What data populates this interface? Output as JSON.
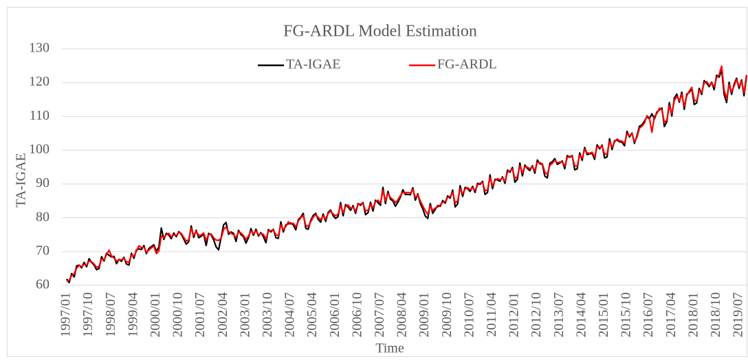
{
  "chart_data": {
    "type": "line",
    "title": "FG-ARDL Model Estimation",
    "x_label": "Time",
    "y_label": "TA-IGAE",
    "ylim": [
      60,
      130
    ],
    "yticks": [
      60,
      70,
      80,
      90,
      100,
      110,
      120,
      130
    ],
    "grid": true,
    "legend": "top",
    "categories": [
      "1997/01",
      null,
      null,
      null,
      null,
      null,
      null,
      null,
      null,
      "1997/10",
      null,
      null,
      null,
      null,
      null,
      null,
      null,
      null,
      "1998/07",
      null,
      null,
      null,
      null,
      null,
      null,
      null,
      null,
      "1999/04",
      null,
      null,
      null,
      null,
      null,
      null,
      null,
      null,
      "2000/01",
      null,
      null,
      null,
      null,
      null,
      null,
      null,
      null,
      "2000/10",
      null,
      null,
      null,
      null,
      null,
      null,
      null,
      null,
      "2001/07",
      null,
      null,
      null,
      null,
      null,
      null,
      null,
      null,
      "2002/04",
      null,
      null,
      null,
      null,
      null,
      null,
      null,
      null,
      "2003/01",
      null,
      null,
      null,
      null,
      null,
      null,
      null,
      null,
      "2003/10",
      null,
      null,
      null,
      null,
      null,
      null,
      null,
      null,
      "2004/07",
      null,
      null,
      null,
      null,
      null,
      null,
      null,
      null,
      "2005/04",
      null,
      null,
      null,
      null,
      null,
      null,
      null,
      null,
      "2006/01",
      null,
      null,
      null,
      null,
      null,
      null,
      null,
      null,
      "2006/10",
      null,
      null,
      null,
      null,
      null,
      null,
      null,
      null,
      "2007/07",
      null,
      null,
      null,
      null,
      null,
      null,
      null,
      null,
      "2008/04",
      null,
      null,
      null,
      null,
      null,
      null,
      null,
      null,
      "2009/01",
      null,
      null,
      null,
      null,
      null,
      null,
      null,
      null,
      "2009/10",
      null,
      null,
      null,
      null,
      null,
      null,
      null,
      null,
      "2010/07",
      null,
      null,
      null,
      null,
      null,
      null,
      null,
      null,
      "2011/04",
      null,
      null,
      null,
      null,
      null,
      null,
      null,
      null,
      "2012/01",
      null,
      null,
      null,
      null,
      null,
      null,
      null,
      null,
      "2012/10",
      null,
      null,
      null,
      null,
      null,
      null,
      null,
      null,
      "2013/07",
      null,
      null,
      null,
      null,
      null,
      null,
      null,
      null,
      "2014/04",
      null,
      null,
      null,
      null,
      null,
      null,
      null,
      null,
      "2015/01",
      null,
      null,
      null,
      null,
      null,
      null,
      null,
      null,
      "2015/10",
      null,
      null,
      null,
      null,
      null,
      null,
      null,
      null,
      "2016/07",
      null,
      null,
      null,
      null,
      null,
      null,
      null,
      null,
      "2017/04",
      null,
      null,
      null,
      null,
      null,
      null,
      null,
      null,
      "2018/01",
      null,
      null,
      null,
      null,
      null,
      null,
      null,
      null,
      "2018/10",
      null,
      null,
      null,
      null,
      null,
      null,
      null,
      null,
      "2019/07",
      null,
      null,
      null
    ],
    "series": [
      {
        "name": "TA-IGAE",
        "color": "#000000",
        "values": [
          61.9,
          60.8,
          63.5,
          62.5,
          65.8,
          66.0,
          65.2,
          66.8,
          65.5,
          67.9,
          66.8,
          66.0,
          64.6,
          65.0,
          68.5,
          67.2,
          69.5,
          68.9,
          68.4,
          68.6,
          66.4,
          67.7,
          67.1,
          68.3,
          66.3,
          66.0,
          69.5,
          68.0,
          70.5,
          70.8,
          70.6,
          71.8,
          69.4,
          70.9,
          71.5,
          72.0,
          70.1,
          71.3,
          77.0,
          73.6,
          75.4,
          74.9,
          73.8,
          75.5,
          74.4,
          75.9,
          75.1,
          73.7,
          72.2,
          72.9,
          77.6,
          74.2,
          76.3,
          74.1,
          74.5,
          75.2,
          71.8,
          75.4,
          74.9,
          73.5,
          71.4,
          70.5,
          74.1,
          77.9,
          78.6,
          75.1,
          75.8,
          75.4,
          73.0,
          76.3,
          75.0,
          74.4,
          72.5,
          74.1,
          76.8,
          74.8,
          76.6,
          74.6,
          75.6,
          74.4,
          72.6,
          76.5,
          75.8,
          76.6,
          74.1,
          73.9,
          78.8,
          75.8,
          77.9,
          78.2,
          78.5,
          77.9,
          76.4,
          79.4,
          80.2,
          81.3,
          76.9,
          76.6,
          79.2,
          80.7,
          81.3,
          79.5,
          78.7,
          81.1,
          78.9,
          81.6,
          82.3,
          80.6,
          79.8,
          80.4,
          84.5,
          80.6,
          83.9,
          83.2,
          82.2,
          83.6,
          81.3,
          84.2,
          83.7,
          84.5,
          80.9,
          81.5,
          84.6,
          82.0,
          85.2,
          84.5,
          83.7,
          89.0,
          84.2,
          87.8,
          85.5,
          85.0,
          83.4,
          84.6,
          86.1,
          88.3,
          86.9,
          86.9,
          86.8,
          88.9,
          85.2,
          87.1,
          84.2,
          82.6,
          80.5,
          79.8,
          84.2,
          81.3,
          82.5,
          83.6,
          83.4,
          85.1,
          84.3,
          86.5,
          85.8,
          88.2,
          83.2,
          84.1,
          89.5,
          86.3,
          89.0,
          88.6,
          87.8,
          89.3,
          87.5,
          90.2,
          89.9,
          90.8,
          86.9,
          87.5,
          92.7,
          88.6,
          91.4,
          91.2,
          90.8,
          92.1,
          90.2,
          94.1,
          93.5,
          94.9,
          90.5,
          91.4,
          96.2,
          92.4,
          95.6,
          94.6,
          94.0,
          95.4,
          93.2,
          97.1,
          96.0,
          95.8,
          92.3,
          91.8,
          96.1,
          96.6,
          97.5,
          95.8,
          96.2,
          96.8,
          94.5,
          98.4,
          97.9,
          98.4,
          94.2,
          94.5,
          99.2,
          97.0,
          100.8,
          98.7,
          98.9,
          99.1,
          97.3,
          101.6,
          100.4,
          101.5,
          97.7,
          98.0,
          103.4,
          100.2,
          102.8,
          103.0,
          102.5,
          102.4,
          101.3,
          105.6,
          103.9,
          105.1,
          102.0,
          104.3,
          107.1,
          107.5,
          108.6,
          109.9,
          109.3,
          110.8,
          109.2,
          111.3,
          111.9,
          112.5,
          107.0,
          108.4,
          114.1,
          110.1,
          115.4,
          116.6,
          114.2,
          117.2,
          112.1,
          116.6,
          117.1,
          118.2,
          113.5,
          114.0,
          118.3,
          116.5,
          120.6,
          119.8,
          118.8,
          120.1,
          117.9,
          122.2,
          121.6,
          123.8,
          116.5,
          114.1,
          120.1,
          116.5,
          119.5,
          121.3,
          118.3,
          120.8,
          116.1,
          122.0
        ]
      },
      {
        "name": "FG-ARDL",
        "color": "#ff0000",
        "values": [
          61.2,
          61.5,
          62.9,
          63.4,
          65.1,
          65.9,
          65.6,
          66.2,
          66.0,
          67.2,
          67.0,
          66.3,
          65.3,
          65.6,
          67.8,
          67.5,
          69.1,
          70.4,
          68.7,
          68.1,
          67.2,
          67.5,
          67.6,
          68.0,
          67.0,
          66.8,
          69.0,
          68.6,
          70.1,
          71.7,
          71.2,
          71.3,
          69.9,
          70.4,
          71.1,
          71.6,
          69.4,
          70.1,
          74.6,
          74.1,
          75.0,
          75.4,
          74.3,
          75.0,
          74.8,
          75.6,
          75.4,
          74.2,
          73.1,
          73.5,
          76.9,
          74.8,
          76.0,
          74.8,
          74.9,
          75.5,
          73.3,
          75.0,
          75.2,
          74.1,
          73.4,
          73.3,
          73.9,
          76.5,
          77.3,
          75.8,
          75.4,
          75.0,
          74.1,
          75.8,
          75.5,
          74.7,
          73.6,
          74.6,
          76.1,
          75.3,
          76.1,
          75.0,
          75.3,
          75.1,
          73.7,
          76.0,
          76.2,
          76.4,
          75.0,
          74.7,
          77.9,
          76.5,
          77.4,
          78.8,
          78.1,
          78.4,
          77.3,
          79.0,
          80.0,
          80.7,
          77.8,
          77.4,
          78.8,
          80.2,
          80.9,
          80.1,
          79.4,
          80.6,
          79.6,
          81.3,
          82.0,
          81.1,
          80.6,
          81.1,
          83.7,
          81.5,
          83.3,
          83.8,
          82.8,
          83.2,
          82.0,
          83.9,
          84.1,
          84.2,
          82.1,
          82.2,
          84.0,
          82.9,
          84.7,
          85.2,
          84.3,
          88.1,
          85.0,
          87.2,
          86.0,
          85.4,
          84.5,
          85.3,
          86.6,
          87.5,
          87.4,
          87.5,
          87.3,
          88.4,
          86.0,
          86.8,
          85.0,
          83.5,
          82.1,
          81.0,
          83.5,
          82.2,
          82.9,
          83.2,
          83.8,
          84.6,
          84.8,
          86.0,
          86.3,
          87.5,
          84.4,
          85.0,
          88.6,
          87.1,
          88.5,
          88.9,
          88.3,
          88.9,
          88.1,
          89.7,
          90.3,
          90.4,
          88.0,
          88.3,
          91.9,
          89.5,
          91.0,
          91.6,
          91.2,
          91.8,
          90.8,
          93.5,
          93.9,
          94.4,
          91.6,
          92.2,
          95.4,
          93.3,
          95.1,
          95.0,
          94.5,
          95.1,
          93.9,
          96.5,
          96.3,
          96.0,
          93.5,
          92.8,
          95.5,
          96.1,
          97.0,
          96.3,
          96.5,
          96.5,
          95.3,
          97.8,
          98.2,
          98.1,
          95.4,
          95.3,
          98.5,
          97.6,
          100.2,
          99.2,
          99.1,
          99.4,
          98.0,
          101.0,
          100.8,
          101.2,
          98.8,
          98.9,
          102.6,
          100.9,
          102.4,
          103.3,
          102.8,
          102.7,
          102.0,
          104.9,
          104.3,
          104.9,
          102.5,
          103.8,
          106.5,
          107.1,
          108.0,
          110.2,
          109.6,
          105.3,
          110.0,
          110.8,
          112.4,
          112.0,
          108.2,
          108.9,
          113.2,
          110.9,
          114.7,
          116.0,
          114.6,
          116.5,
          113.0,
          116.1,
          117.5,
          118.6,
          114.8,
          114.6,
          117.6,
          117.1,
          119.9,
          120.3,
          119.2,
          119.8,
          118.8,
          121.5,
          122.3,
          124.9,
          117.8,
          115.2,
          119.4,
          117.3,
          119.0,
          120.9,
          118.9,
          120.4,
          117.0,
          122.3
        ]
      }
    ]
  }
}
